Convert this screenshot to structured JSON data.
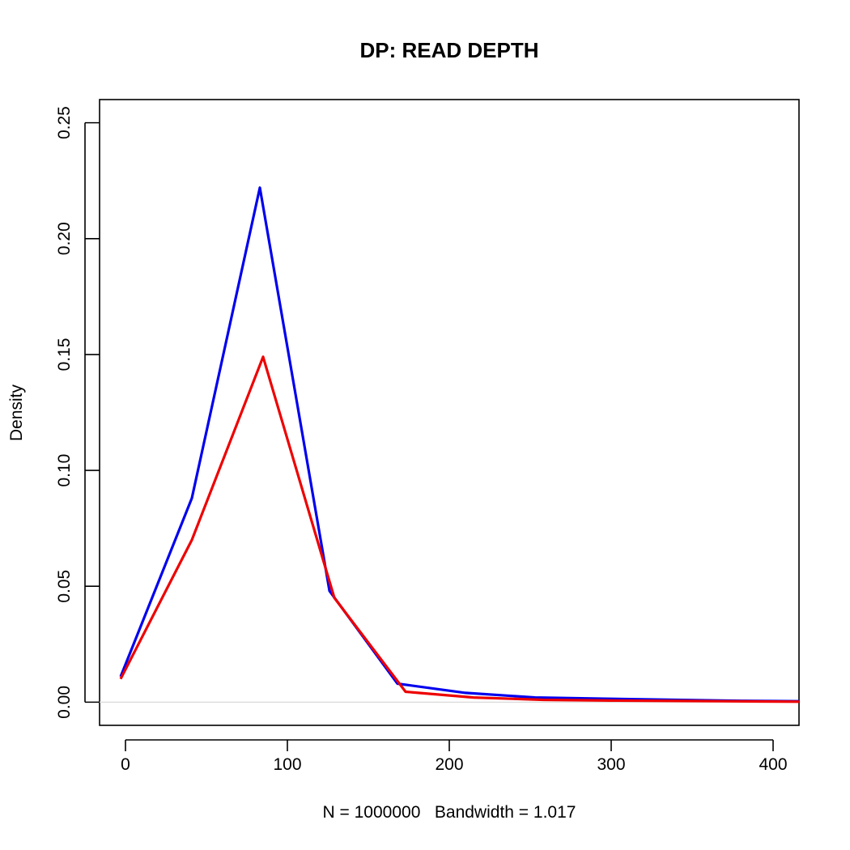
{
  "chart_data": {
    "type": "line",
    "title": "DP: READ DEPTH",
    "xlabel": "N = 1000000   Bandwidth = 1.017",
    "ylabel": "Density",
    "xlim": [
      -16,
      416
    ],
    "ylim": [
      -0.01,
      0.26
    ],
    "xticks": [
      0,
      100,
      200,
      300,
      400
    ],
    "xtick_labels": [
      "0",
      "100",
      "200",
      "300",
      "400"
    ],
    "yticks": [
      0.0,
      0.05,
      0.1,
      0.15,
      0.2,
      0.25
    ],
    "ytick_labels": [
      "0.00",
      "0.05",
      "0.10",
      "0.15",
      "0.20",
      "0.25"
    ],
    "grid": false,
    "zero_reference_line": true,
    "series": [
      {
        "color": "#0000ee",
        "points": [
          {
            "x": -3,
            "y": 0.011
          },
          {
            "x": 41,
            "y": 0.088
          },
          {
            "x": 83,
            "y": 0.222
          },
          {
            "x": 126,
            "y": 0.048
          },
          {
            "x": 168,
            "y": 0.008
          },
          {
            "x": 210,
            "y": 0.004
          },
          {
            "x": 253,
            "y": 0.002
          },
          {
            "x": 296,
            "y": 0.0015
          },
          {
            "x": 339,
            "y": 0.001
          },
          {
            "x": 380,
            "y": 0.0006
          },
          {
            "x": 416,
            "y": 0.0004
          }
        ]
      },
      {
        "color": "#ee0000",
        "points": [
          {
            "x": -3,
            "y": 0.01
          },
          {
            "x": 41,
            "y": 0.07
          },
          {
            "x": 85,
            "y": 0.149
          },
          {
            "x": 129,
            "y": 0.045
          },
          {
            "x": 173,
            "y": 0.0045
          },
          {
            "x": 215,
            "y": 0.002
          },
          {
            "x": 258,
            "y": 0.001
          },
          {
            "x": 300,
            "y": 0.0007
          },
          {
            "x": 345,
            "y": 0.0005
          },
          {
            "x": 390,
            "y": 0.0003
          },
          {
            "x": 416,
            "y": 0.0002
          }
        ]
      }
    ]
  }
}
